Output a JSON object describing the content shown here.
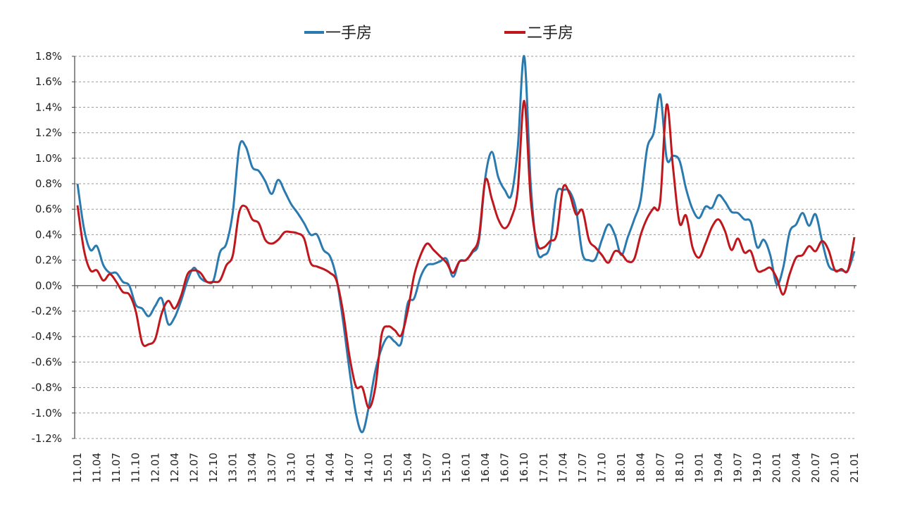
{
  "chart_data": {
    "type": "line",
    "title": "",
    "xlabel": "",
    "ylabel": "",
    "ylim": [
      -1.2,
      1.8
    ],
    "y_ticks": [
      "1.8%",
      "1.6%",
      "1.4%",
      "1.2%",
      "1.0%",
      "0.8%",
      "0.6%",
      "0.4%",
      "0.2%",
      "0.0%",
      "-0.2%",
      "-0.4%",
      "-0.6%",
      "-0.8%",
      "-1.0%",
      "-1.2%"
    ],
    "y_tick_values": [
      1.8,
      1.6,
      1.4,
      1.2,
      1.0,
      0.8,
      0.6,
      0.4,
      0.2,
      0.0,
      -0.2,
      -0.4,
      -0.6,
      -0.8,
      -1.0,
      -1.2
    ],
    "x_ticks": [
      "11.01",
      "11.04",
      "11.07",
      "11.10",
      "12.01",
      "12.04",
      "12.07",
      "12.10",
      "13.01",
      "13.04",
      "13.07",
      "13.10",
      "14.01",
      "14.04",
      "14.07",
      "14.10",
      "15.01",
      "15.04",
      "15.07",
      "15.10",
      "16.01",
      "16.04",
      "16.07",
      "16.10",
      "17.01",
      "17.04",
      "17.07",
      "17.10",
      "18.01",
      "18.04",
      "18.07",
      "18.10",
      "19.01",
      "19.04",
      "19.07",
      "19.10",
      "20.01",
      "20.04",
      "20.07",
      "20.10",
      "21.01"
    ],
    "grid": true,
    "legend_position": "top",
    "series": [
      {
        "name": "一手房",
        "color": "#2a7ab0",
        "values": [
          0.8,
          0.45,
          0.28,
          0.31,
          0.16,
          0.1,
          0.1,
          0.03,
          0.0,
          -0.15,
          -0.18,
          -0.24,
          -0.16,
          -0.1,
          -0.3,
          -0.25,
          -0.12,
          0.04,
          0.14,
          0.06,
          0.03,
          0.04,
          0.26,
          0.33,
          0.58,
          1.09,
          1.09,
          0.93,
          0.9,
          0.82,
          0.72,
          0.83,
          0.74,
          0.64,
          0.57,
          0.49,
          0.4,
          0.4,
          0.28,
          0.23,
          0.06,
          -0.27,
          -0.66,
          -1.0,
          -1.15,
          -0.95,
          -0.67,
          -0.49,
          -0.4,
          -0.44,
          -0.45,
          -0.14,
          -0.1,
          0.07,
          0.16,
          0.17,
          0.19,
          0.21,
          0.07,
          0.19,
          0.2,
          0.26,
          0.35,
          0.85,
          1.05,
          0.85,
          0.75,
          0.71,
          1.08,
          1.8,
          0.8,
          0.28,
          0.24,
          0.32,
          0.72,
          0.75,
          0.74,
          0.6,
          0.25,
          0.2,
          0.21,
          0.36,
          0.48,
          0.4,
          0.24,
          0.38,
          0.52,
          0.68,
          1.08,
          1.2,
          1.5,
          1.0,
          1.02,
          0.98,
          0.76,
          0.6,
          0.53,
          0.62,
          0.61,
          0.71,
          0.66,
          0.58,
          0.57,
          0.52,
          0.5,
          0.3,
          0.36,
          0.24,
          0.01,
          0.14,
          0.42,
          0.48,
          0.57,
          0.47,
          0.56,
          0.35,
          0.16,
          0.12,
          0.12,
          0.12,
          0.27
        ]
      },
      {
        "name": "二手房",
        "color": "#c0171c",
        "values": [
          0.63,
          0.28,
          0.12,
          0.12,
          0.04,
          0.09,
          0.03,
          -0.05,
          -0.07,
          -0.2,
          -0.45,
          -0.46,
          -0.42,
          -0.22,
          -0.12,
          -0.18,
          -0.08,
          0.09,
          0.12,
          0.1,
          0.03,
          0.03,
          0.04,
          0.16,
          0.24,
          0.58,
          0.62,
          0.52,
          0.49,
          0.36,
          0.33,
          0.36,
          0.42,
          0.42,
          0.41,
          0.37,
          0.18,
          0.15,
          0.13,
          0.1,
          0.04,
          -0.2,
          -0.55,
          -0.79,
          -0.8,
          -0.96,
          -0.8,
          -0.38,
          -0.32,
          -0.35,
          -0.39,
          -0.2,
          0.08,
          0.24,
          0.33,
          0.28,
          0.23,
          0.18,
          0.1,
          0.19,
          0.2,
          0.27,
          0.38,
          0.83,
          0.68,
          0.52,
          0.45,
          0.53,
          0.75,
          1.45,
          0.68,
          0.33,
          0.3,
          0.35,
          0.4,
          0.77,
          0.72,
          0.56,
          0.59,
          0.36,
          0.3,
          0.24,
          0.18,
          0.27,
          0.25,
          0.19,
          0.21,
          0.4,
          0.53,
          0.61,
          0.66,
          1.42,
          0.92,
          0.49,
          0.55,
          0.3,
          0.22,
          0.33,
          0.46,
          0.52,
          0.43,
          0.28,
          0.37,
          0.26,
          0.27,
          0.12,
          0.12,
          0.14,
          0.06,
          -0.07,
          0.09,
          0.22,
          0.24,
          0.31,
          0.27,
          0.35,
          0.28,
          0.12,
          0.13,
          0.12,
          0.38
        ]
      }
    ]
  }
}
